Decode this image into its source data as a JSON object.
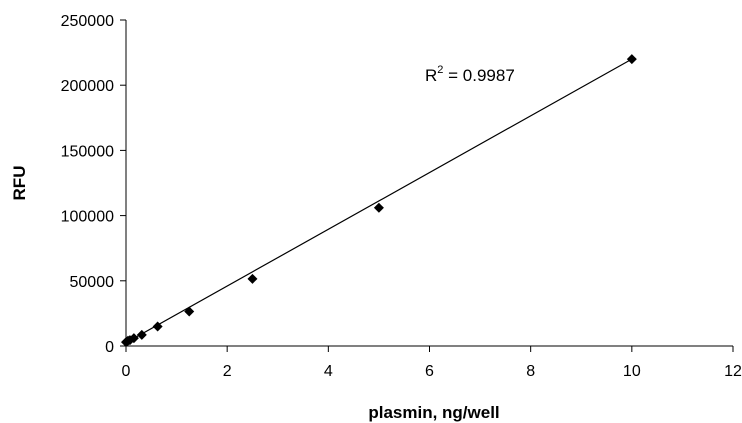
{
  "chart_data": {
    "type": "scatter",
    "xlabel": "plasmin, ng/well",
    "ylabel": "RFU",
    "xlim": [
      0,
      12
    ],
    "ylim": [
      0,
      250000
    ],
    "x_ticks": [
      "0",
      "2",
      "4",
      "6",
      "8",
      "10",
      "12"
    ],
    "y_ticks": [
      "0",
      "50000",
      "100000",
      "150000",
      "200000",
      "250000"
    ],
    "grid": false,
    "marker": "diamond",
    "color": "#000000",
    "series": [
      {
        "x": [
          0,
          0.039,
          0.078,
          0.156,
          0.3125,
          0.625,
          1.25,
          2.5,
          5,
          10
        ],
        "y": [
          3000,
          4000,
          4500,
          6000,
          8500,
          15000,
          26500,
          51500,
          106000,
          220000
        ]
      }
    ],
    "trendline": {
      "type": "linear",
      "x": [
        0,
        10
      ],
      "y": [
        2500,
        220000
      ]
    },
    "annotation": {
      "text": "R",
      "sup": "2",
      "suffix": " = 0.9987"
    }
  }
}
